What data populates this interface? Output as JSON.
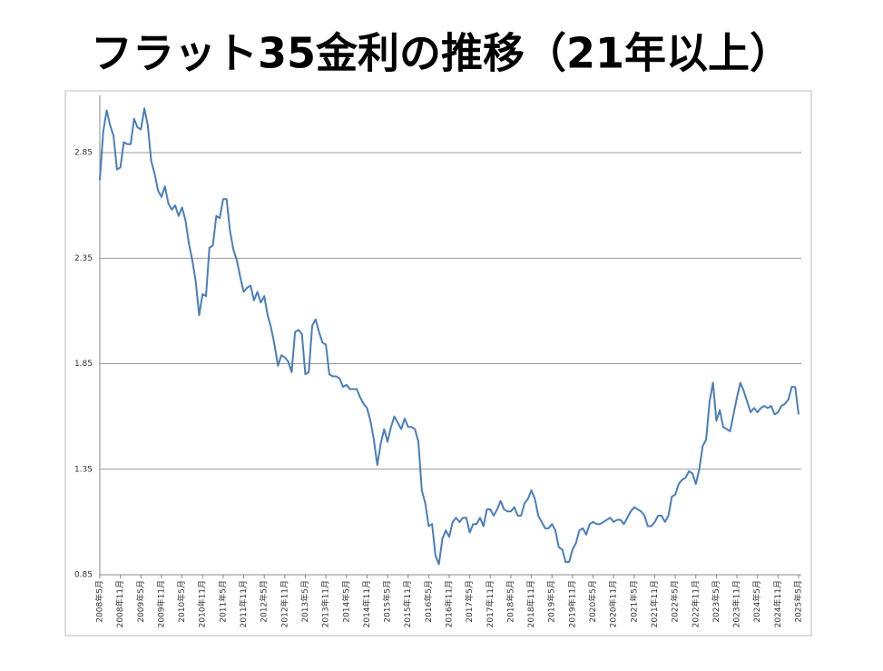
{
  "chart_data": {
    "type": "line",
    "title": "フラット35金利の推移（21年以上）",
    "color": "#4a7ebb",
    "ylim": [
      0.85,
      3.1
    ],
    "yticks": [
      0.85,
      1.35,
      1.85,
      2.35,
      2.85
    ],
    "grid": true,
    "categories": [
      "2008年5月",
      null,
      null,
      null,
      null,
      null,
      "2008年11月",
      null,
      null,
      null,
      null,
      null,
      "2009年5月",
      null,
      null,
      null,
      null,
      null,
      "2009年11月",
      null,
      null,
      null,
      null,
      null,
      "2010年5月",
      null,
      null,
      null,
      null,
      null,
      "2010年11月",
      null,
      null,
      null,
      null,
      null,
      "2011年5月",
      null,
      null,
      null,
      null,
      null,
      "2011年11月",
      null,
      null,
      null,
      null,
      null,
      "2012年5月",
      null,
      null,
      null,
      null,
      null,
      "2012年11月",
      null,
      null,
      null,
      null,
      null,
      "2013年5月",
      null,
      null,
      null,
      null,
      null,
      "2013年11月",
      null,
      null,
      null,
      null,
      null,
      "2014年5月",
      null,
      null,
      null,
      null,
      null,
      "2014年11月",
      null,
      null,
      null,
      null,
      null,
      "2015年5月",
      null,
      null,
      null,
      null,
      null,
      "2015年11月",
      null,
      null,
      null,
      null,
      null,
      "2016年5月",
      null,
      null,
      null,
      null,
      null,
      "2016年11月",
      null,
      null,
      null,
      null,
      null,
      "2017年5月",
      null,
      null,
      null,
      null,
      null,
      "2017年11月",
      null,
      null,
      null,
      null,
      null,
      "2018年5月",
      null,
      null,
      null,
      null,
      null,
      "2018年11月",
      null,
      null,
      null,
      null,
      null,
      "2019年5月",
      null,
      null,
      null,
      null,
      null,
      "2019年11月",
      null,
      null,
      null,
      null,
      null,
      "2020年5月",
      null,
      null,
      null,
      null,
      null,
      "2020年11月",
      null,
      null,
      null,
      null,
      null,
      "2021年5月",
      null,
      null,
      null,
      null,
      null,
      "2021年11月",
      null,
      null,
      null,
      null,
      null,
      "2022年5月",
      null,
      null,
      null,
      null,
      null,
      "2022年11月",
      null,
      null,
      null,
      null,
      null,
      "2023年5月",
      null,
      null,
      null,
      null,
      null,
      "2023年11月",
      null,
      null,
      null,
      null,
      null,
      "2024年5月",
      null,
      null,
      null,
      null,
      null,
      "2024年11月",
      null,
      null,
      null,
      null,
      null,
      "2025年5月"
    ],
    "values": [
      2.72,
      2.95,
      3.05,
      2.98,
      2.93,
      2.77,
      2.78,
      2.9,
      2.89,
      2.89,
      3.01,
      2.97,
      2.96,
      3.06,
      2.98,
      2.81,
      2.75,
      2.67,
      2.64,
      2.69,
      2.61,
      2.58,
      2.6,
      2.55,
      2.59,
      2.53,
      2.42,
      2.34,
      2.24,
      2.08,
      2.18,
      2.17,
      2.4,
      2.41,
      2.55,
      2.54,
      2.63,
      2.63,
      2.48,
      2.39,
      2.34,
      2.26,
      2.19,
      2.21,
      2.22,
      2.15,
      2.19,
      2.14,
      2.17,
      2.08,
      2.02,
      1.94,
      1.84,
      1.89,
      1.88,
      1.86,
      1.81,
      2.0,
      2.01,
      1.99,
      1.8,
      1.81,
      2.03,
      2.06,
      2.0,
      1.95,
      1.94,
      1.8,
      1.79,
      1.79,
      1.78,
      1.74,
      1.75,
      1.73,
      1.73,
      1.73,
      1.69,
      1.66,
      1.64,
      1.58,
      1.49,
      1.37,
      1.47,
      1.54,
      1.48,
      1.55,
      1.6,
      1.57,
      1.54,
      1.59,
      1.55,
      1.55,
      1.54,
      1.48,
      1.25,
      1.19,
      1.08,
      1.09,
      0.94,
      0.9,
      1.02,
      1.06,
      1.03,
      1.1,
      1.12,
      1.1,
      1.12,
      1.12,
      1.05,
      1.09,
      1.09,
      1.12,
      1.08,
      1.16,
      1.16,
      1.13,
      1.16,
      1.2,
      1.16,
      1.15,
      1.15,
      1.17,
      1.13,
      1.13,
      1.19,
      1.21,
      1.25,
      1.21,
      1.13,
      1.1,
      1.07,
      1.07,
      1.09,
      1.06,
      0.98,
      0.97,
      0.91,
      0.91,
      0.97,
      1.0,
      1.06,
      1.07,
      1.04,
      1.09,
      1.1,
      1.09,
      1.09,
      1.1,
      1.11,
      1.12,
      1.1,
      1.11,
      1.11,
      1.09,
      1.12,
      1.15,
      1.17,
      1.16,
      1.15,
      1.13,
      1.08,
      1.08,
      1.1,
      1.13,
      1.13,
      1.1,
      1.13,
      1.22,
      1.23,
      1.28,
      1.3,
      1.31,
      1.34,
      1.33,
      1.28,
      1.35,
      1.46,
      1.49,
      1.67,
      1.76,
      1.58,
      1.63,
      1.55,
      1.54,
      1.53,
      1.61,
      1.69,
      1.76,
      1.72,
      1.67,
      1.62,
      1.64,
      1.62,
      1.64,
      1.65,
      1.64,
      1.65,
      1.61,
      1.62,
      1.65,
      1.66,
      1.68,
      1.74,
      1.74,
      1.61
    ]
  }
}
